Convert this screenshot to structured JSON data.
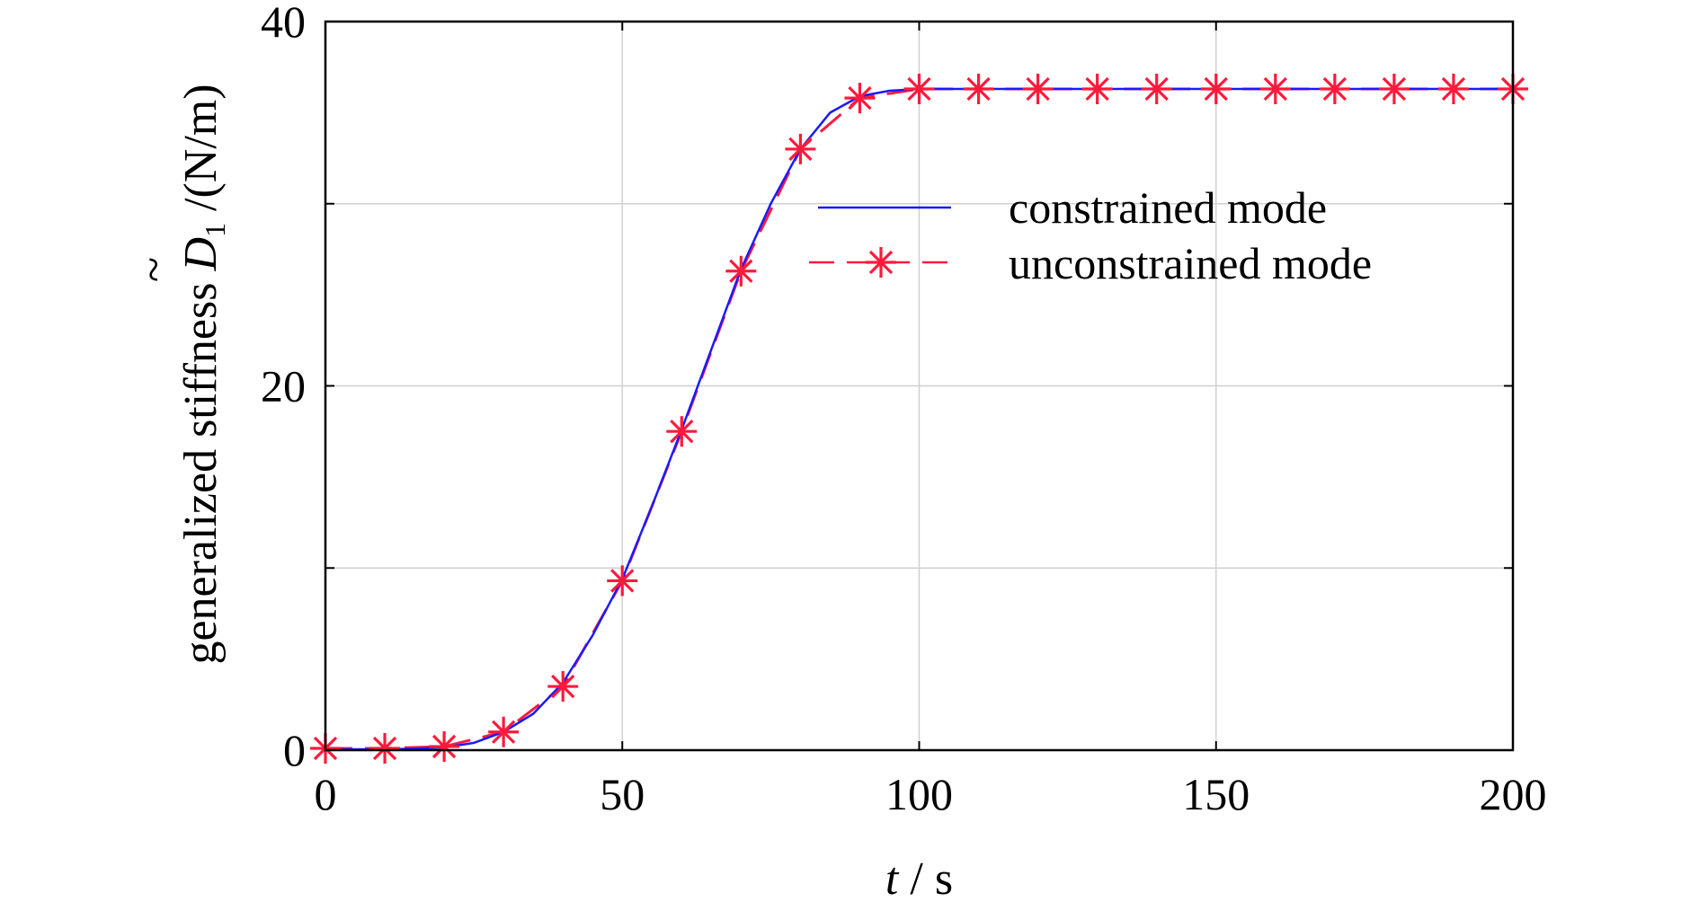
{
  "chart_data": {
    "type": "line",
    "xlabel": {
      "var": "t",
      "sep": " / ",
      "unit": "s"
    },
    "ylabel": {
      "prefix": "generalized stiffness ",
      "tilde": "~",
      "symbol": "D",
      "subscript": "1",
      "unit": " /(N/m)"
    },
    "xlim": [
      0,
      200
    ],
    "ylim": [
      0,
      40
    ],
    "x_ticks": [
      0,
      50,
      100,
      150,
      200
    ],
    "x_tick_labels": [
      "0",
      "50",
      "100",
      "150",
      "200"
    ],
    "y_ticks": [
      0,
      20,
      40
    ],
    "y_tick_labels": [
      "0",
      "20",
      "40"
    ],
    "grid": true,
    "legend": {
      "placement": "upper-right"
    },
    "colors": {
      "constrained": "#1a1aff",
      "unconstrained": "#ff1a3c",
      "grid": "#d0d0d0",
      "axes": "#000000"
    },
    "series": [
      {
        "name": "constrained mode",
        "style": "solid",
        "marker": "none",
        "x": [
          0,
          5,
          10,
          15,
          20,
          25,
          30,
          35,
          40,
          45,
          50,
          55,
          60,
          65,
          70,
          75,
          80,
          85,
          90,
          95,
          100,
          110,
          120,
          130,
          140,
          150,
          160,
          170,
          180,
          190,
          200
        ],
        "y": [
          0.05,
          0.05,
          0.05,
          0.08,
          0.15,
          0.4,
          1.0,
          2.0,
          3.7,
          6.3,
          9.4,
          13.4,
          17.6,
          22.0,
          26.4,
          30.0,
          33.0,
          35.0,
          35.9,
          36.2,
          36.3,
          36.3,
          36.3,
          36.3,
          36.3,
          36.3,
          36.3,
          36.3,
          36.3,
          36.3,
          36.3
        ]
      },
      {
        "name": "unconstrained mode",
        "style": "dashed",
        "marker": "asterisk",
        "x": [
          0,
          10,
          20,
          30,
          40,
          50,
          60,
          70,
          80,
          90,
          100,
          110,
          120,
          130,
          140,
          150,
          160,
          170,
          180,
          190,
          200
        ],
        "y": [
          0.1,
          0.1,
          0.2,
          1.0,
          3.5,
          9.3,
          17.5,
          26.3,
          33.0,
          35.8,
          36.3,
          36.3,
          36.3,
          36.3,
          36.3,
          36.3,
          36.3,
          36.3,
          36.3,
          36.3,
          36.3
        ]
      }
    ]
  }
}
